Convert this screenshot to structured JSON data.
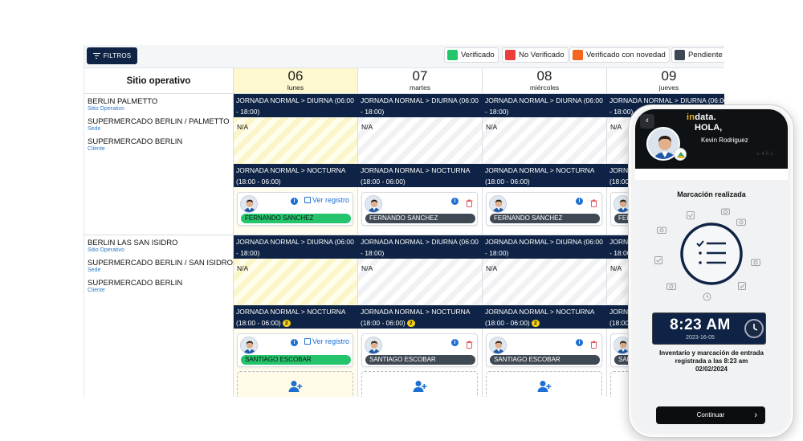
{
  "toolbar": {
    "filter_label": "FILTROS",
    "legend": [
      {
        "label": "Verificado",
        "color": "#22c56a"
      },
      {
        "label": "No Verificado",
        "color": "#ee3b3b"
      },
      {
        "label": "Verificado con novedad",
        "color": "#f4651e"
      },
      {
        "label": "Pendiente V",
        "color": "#3d4852"
      }
    ]
  },
  "grid": {
    "site_header": "Sitio operativo",
    "days": [
      {
        "num": "06",
        "name": "lunes"
      },
      {
        "num": "07",
        "name": "martes"
      },
      {
        "num": "08",
        "name": "miércoles"
      },
      {
        "num": "09",
        "name": "jueves"
      }
    ],
    "rows": [
      {
        "site": [
          {
            "title": "BERLIN PALMETTO",
            "sub": "Sitio Operativo"
          },
          {
            "title": "SUPERMERCADO BERLIN / PALMETTO",
            "sub": "Sede"
          },
          {
            "title": "SUPERMERCADO BERLIN",
            "sub": "Cliente"
          }
        ],
        "shift1": "JORNADA NORMAL > DIURNA (06:00 - 18:00)",
        "na": "N/A",
        "shift2": "JORNADA NORMAL > NOCTURNA (18:00 - 06:00)",
        "shift2_badge": "",
        "worker": "FERNANDO SANCHEZ"
      },
      {
        "site": [
          {
            "title": "BERLIN LAS SAN ISIDRO",
            "sub": "Sitio Operativo"
          },
          {
            "title": "SUPERMERCADO BERLIN / SAN ISIDRO",
            "sub": "Sede"
          },
          {
            "title": "SUPERMERCADO BERLIN",
            "sub": "Cliente"
          }
        ],
        "shift1": "JORNADA NORMAL > DIURNA (06:00 - 18:00)",
        "na": "N/A",
        "shift2": "JORNADA NORMAL > NOCTURNA (18:00 - 06:00)",
        "shift2_badge": "2",
        "worker": "SANTIAGO ESCOBAR"
      }
    ],
    "ver_registro": "Ver registro",
    "info_glyph": "i"
  },
  "phone": {
    "brand_in": "in",
    "brand_rest": "data.",
    "greeting": "HOLA,",
    "user_name": "Kevin Rodriguez",
    "version": "v. 4.0.1",
    "status_title": "Marcación realizada",
    "time": "8:23 AM",
    "date": "2023-16-05",
    "message_line1": "Inventario y marcación de entrada",
    "message_line2": "registrada a las 8:23 am",
    "message_line3": "02/02/2024",
    "continue_label": "Continuar",
    "back_glyph": "‹",
    "chevron_glyph": "›"
  }
}
